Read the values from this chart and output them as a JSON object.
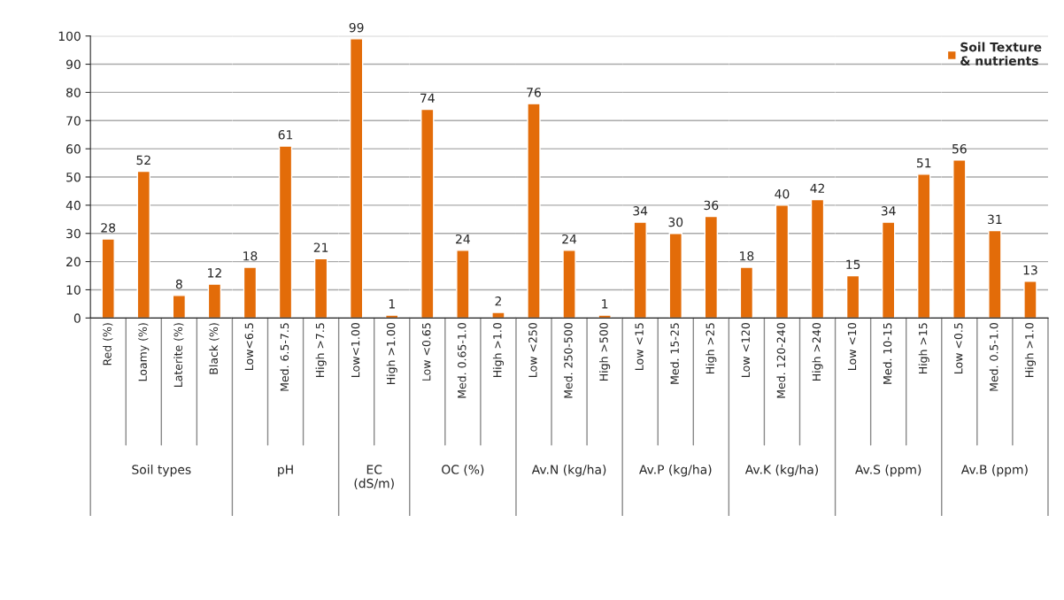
{
  "chart_data": [
    {
      "type": "bar",
      "xlabel": "Soil types",
      "categories": [
        "Red (%)",
        "Loamy (%)",
        "Laterite (%)",
        "Black (%)"
      ],
      "series": [
        {
          "color": "#e36c09",
          "values": [
            28,
            52,
            8,
            12
          ]
        }
      ],
      "ylim": [
        0,
        100
      ],
      "yticks": [
        0,
        10,
        20,
        30,
        40,
        50,
        60,
        70,
        80,
        90,
        100
      ],
      "grid": "y",
      "data_labels": true
    },
    {
      "type": "bar",
      "xlabel": "pH",
      "categories": [
        "Low<6.5",
        "Med. 6.5-7.5",
        "High >7.5"
      ],
      "series": [
        {
          "color": "#e36c09",
          "values": [
            18,
            61,
            21
          ]
        }
      ],
      "ylim": [
        0,
        100
      ],
      "yticks": [
        0,
        10,
        20,
        30,
        40,
        50,
        60,
        70,
        80,
        90,
        100
      ],
      "grid": "y",
      "data_labels": true,
      "tick_labels": "x"
    },
    {
      "type": "bar",
      "xlabel": "EC\n(dS/m)",
      "categories": [
        "Low<1.00",
        "High >1.00"
      ],
      "series": [
        {
          "color": "#e36c09",
          "values": [
            99,
            1
          ]
        }
      ],
      "ylim": [
        0,
        100
      ],
      "yticks": [
        0,
        10,
        20,
        30,
        40,
        50,
        60,
        70,
        80,
        90,
        100
      ],
      "grid": "y",
      "data_labels": true,
      "tick_labels": "x"
    },
    {
      "type": "bar",
      "xlabel": "OC (%)",
      "categories": [
        "Low <0.65",
        "Med. 0.65-1.0",
        "High >1.0"
      ],
      "series": [
        {
          "color": "#e36c09",
          "values": [
            74,
            24,
            2
          ]
        }
      ],
      "ylim": [
        0,
        100
      ],
      "yticks": [
        0,
        10,
        20,
        30,
        40,
        50,
        60,
        70,
        80,
        90,
        100
      ],
      "grid": "y",
      "data_labels": true,
      "tick_labels": "x"
    },
    {
      "type": "bar",
      "xlabel": "Av.N (kg/ha)",
      "categories": [
        "Low <250",
        "Med. 250-500",
        "High >500"
      ],
      "series": [
        {
          "color": "#e36c09",
          "values": [
            76,
            24,
            1
          ]
        }
      ],
      "ylim": [
        0,
        100
      ],
      "yticks": [
        0,
        10,
        20,
        30,
        40,
        50,
        60,
        70,
        80,
        90,
        100
      ],
      "grid": "y",
      "data_labels": true,
      "tick_labels": "x"
    },
    {
      "type": "bar",
      "xlabel": "Av.P (kg/ha)",
      "categories": [
        "Low <15",
        "Med. 15-25",
        "High >25"
      ],
      "series": [
        {
          "color": "#e36c09",
          "values": [
            34,
            30,
            36
          ]
        }
      ],
      "ylim": [
        0,
        100
      ],
      "yticks": [
        0,
        10,
        20,
        30,
        40,
        50,
        60,
        70,
        80,
        90,
        100
      ],
      "grid": "y",
      "data_labels": true,
      "tick_labels": "x"
    },
    {
      "type": "bar",
      "xlabel": "Av.K (kg/ha)",
      "categories": [
        "Low <120",
        "Med. 120-240",
        "High >240"
      ],
      "series": [
        {
          "color": "#e36c09",
          "values": [
            18,
            40,
            42
          ]
        }
      ],
      "ylim": [
        0,
        100
      ],
      "yticks": [
        0,
        10,
        20,
        30,
        40,
        50,
        60,
        70,
        80,
        90,
        100
      ],
      "grid": "y",
      "data_labels": true,
      "tick_labels": "x"
    },
    {
      "type": "bar",
      "xlabel": "Av.S (ppm)",
      "categories": [
        "Low <10",
        "Med. 10-15",
        "High >15"
      ],
      "series": [
        {
          "color": "#e36c09",
          "values": [
            15,
            34,
            51
          ]
        }
      ],
      "ylim": [
        0,
        100
      ],
      "yticks": [
        0,
        10,
        20,
        30,
        40,
        50,
        60,
        70,
        80,
        90,
        100
      ],
      "grid": "y",
      "data_labels": true,
      "tick_labels": "x"
    },
    {
      "type": "bar",
      "xlabel": "Av.B (ppm)",
      "categories": [
        "Low <0.5",
        "Med. 0.5-1.0",
        "High >1.0"
      ],
      "series": [
        {
          "name": "Soil Texture & nutrients",
          "color": "#e36c09",
          "values": [
            56,
            31,
            13
          ]
        }
      ],
      "ylim": [
        0,
        100
      ],
      "yticks": [
        0,
        10,
        20,
        30,
        40,
        50,
        60,
        70,
        80,
        90,
        100
      ],
      "grid": "y",
      "data_labels": true,
      "tick_labels": "x",
      "legend": "top right"
    }
  ]
}
